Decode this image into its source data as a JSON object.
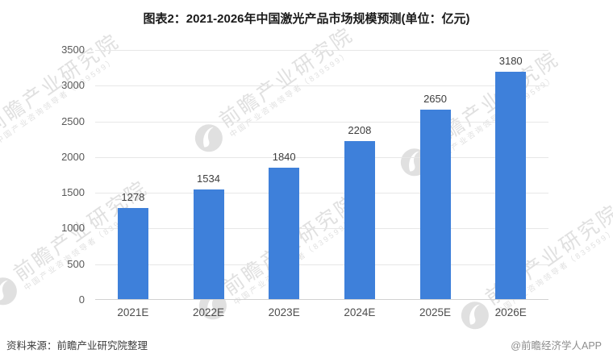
{
  "title": "图表2：2021-2026年中国激光产品市场规模预测(单位：亿元)",
  "chart_data": {
    "type": "bar",
    "title": "图表2：2021-2026年中国激光产品市场规模预测(单位：亿元)",
    "categories": [
      "2021E",
      "2022E",
      "2023E",
      "2024E",
      "2025E",
      "2026E"
    ],
    "values": [
      1278,
      1534,
      1840,
      2208,
      2650,
      3180
    ],
    "xlabel": "",
    "ylabel": "",
    "unit": "亿元",
    "ylim": [
      0,
      3500
    ],
    "yticks": [
      0,
      500,
      1000,
      1500,
      2000,
      2500,
      3000,
      3500
    ],
    "grid": true,
    "legend": "none",
    "bar_color": "#3e80da"
  },
  "watermark": {
    "main_text": "前瞻产业研究院",
    "sub_text": "中国产业咨询领导者（839599）",
    "logo": "qianzhan-bird-logo"
  },
  "footer": {
    "source": "资料来源：前瞻产业研究院整理",
    "brand": "@前瞻经济学人APP"
  },
  "colors": {
    "bar": "#3e80da",
    "gridline": "#e7e7e7",
    "axis_line": "#d2d2d2",
    "axis_label": "#595959",
    "data_label": "#3d3d3d",
    "title": "#1a1a1a",
    "source_text": "#3c3c3c",
    "brand_text": "#8d8d8d",
    "watermark": "#c7c7c7",
    "background": "#ffffff"
  }
}
